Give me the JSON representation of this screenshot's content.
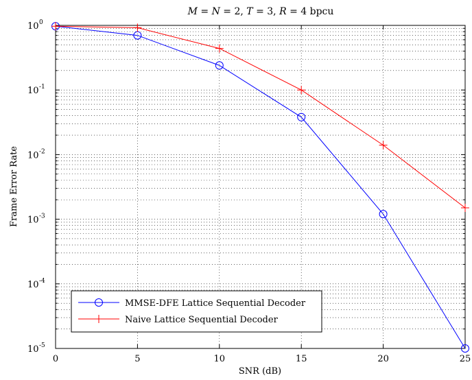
{
  "chart_data": {
    "type": "line",
    "title": {
      "parts": [
        {
          "t": "M",
          "italic": true
        },
        {
          "t": " = ",
          "italic": false
        },
        {
          "t": "N",
          "italic": true
        },
        {
          "t": " = 2, ",
          "italic": false
        },
        {
          "t": "T",
          "italic": true
        },
        {
          "t": " = 3, ",
          "italic": false
        },
        {
          "t": "R",
          "italic": true
        },
        {
          "t": " = 4 bpcu",
          "italic": false
        }
      ]
    },
    "xlabel": "SNR (dB)",
    "ylabel": "Frame Error Rate",
    "xlim": [
      0,
      25
    ],
    "ylim": [
      1e-05,
      1
    ],
    "yscale": "log",
    "grid": true,
    "legend_position": "bottom-left",
    "xticks": [
      {
        "value": 0,
        "label": "0"
      },
      {
        "value": 5,
        "label": "5"
      },
      {
        "value": 10,
        "label": "10"
      },
      {
        "value": 15,
        "label": "15"
      },
      {
        "value": 20,
        "label": "20"
      },
      {
        "value": 25,
        "label": "25"
      }
    ],
    "yticks": [
      {
        "value": 1,
        "base": "10",
        "exp": "0"
      },
      {
        "value": 0.1,
        "base": "10",
        "exp": "-1"
      },
      {
        "value": 0.01,
        "base": "10",
        "exp": "-2"
      },
      {
        "value": 0.001,
        "base": "10",
        "exp": "-3"
      },
      {
        "value": 0.0001,
        "base": "10",
        "exp": "-4"
      },
      {
        "value": 1e-05,
        "base": "10",
        "exp": "-5"
      }
    ],
    "series": [
      {
        "name": "MMSE-DFE Lattice Sequential Decoder",
        "color": "#0000ff",
        "marker": "circle",
        "x": [
          0,
          5,
          10,
          15,
          20,
          25
        ],
        "y": [
          0.97,
          0.7,
          0.24,
          0.038,
          0.0012,
          1e-05
        ]
      },
      {
        "name": "Naive Lattice Sequential Decoder",
        "color": "#ff0000",
        "marker": "plus",
        "x": [
          0,
          5,
          10,
          15,
          20,
          25
        ],
        "y": [
          0.97,
          0.92,
          0.44,
          0.1,
          0.014,
          0.0015
        ]
      }
    ]
  }
}
